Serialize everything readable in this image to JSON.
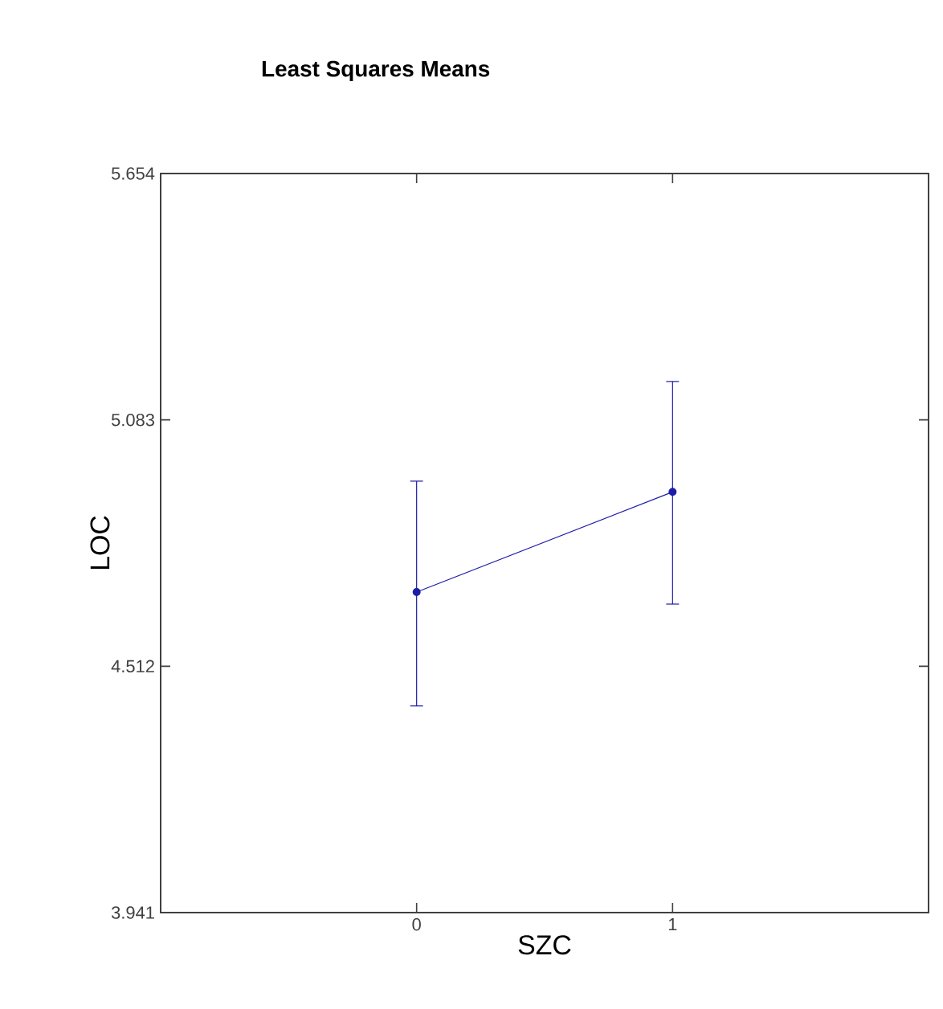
{
  "chart_data": {
    "type": "line",
    "title": "Least Squares Means",
    "xlabel": "SZC",
    "ylabel": "LOC",
    "x": [
      0,
      1
    ],
    "series": [
      {
        "color": "#1c1ca8",
        "values": [
          4.684,
          4.916
        ],
        "errors": [
          [
            4.42,
            4.941
          ],
          [
            4.656,
            5.172
          ]
        ]
      }
    ],
    "xlim": [
      -1,
      2
    ],
    "xticks": [
      0,
      1
    ],
    "ylim": [
      3.941,
      5.654
    ],
    "yticks": [
      3.941,
      4.512,
      5.083,
      5.654
    ],
    "grid": false,
    "marker": "circle",
    "line_style": "solid"
  }
}
